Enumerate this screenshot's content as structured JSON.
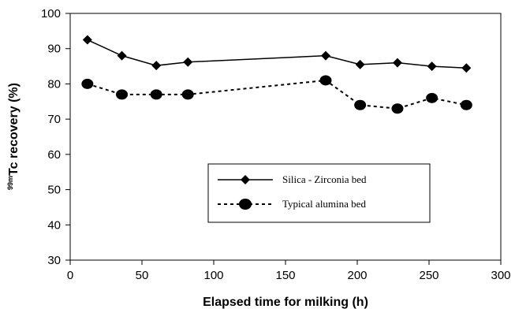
{
  "chart_data": {
    "type": "line",
    "title": "",
    "xlabel": "Elapsed time for milking (h)",
    "ylabel": {
      "superscript": "99m",
      "text": "Tc recovery (%)"
    },
    "xlim": [
      0,
      300
    ],
    "ylim": [
      30,
      100
    ],
    "xticks": [
      0,
      50,
      100,
      150,
      200,
      250,
      300
    ],
    "yticks": [
      30,
      40,
      50,
      60,
      70,
      80,
      90,
      100
    ],
    "grid": false,
    "legend_position": "center-right",
    "series": [
      {
        "name": "Silica - Zirconia bed",
        "marker": "diamond",
        "line_style": "solid",
        "color": "#000000",
        "x": [
          12,
          36,
          60,
          82,
          178,
          202,
          228,
          252,
          276
        ],
        "y": [
          92.5,
          88,
          85.2,
          86.2,
          88,
          85.5,
          86,
          85,
          84.5
        ]
      },
      {
        "name": "Typical alumina bed",
        "marker": "circle",
        "line_style": "dashed",
        "color": "#000000",
        "x": [
          12,
          36,
          60,
          82,
          178,
          202,
          228,
          252,
          276
        ],
        "y": [
          80,
          77,
          77,
          77,
          81,
          74,
          73,
          76,
          74
        ]
      }
    ]
  }
}
